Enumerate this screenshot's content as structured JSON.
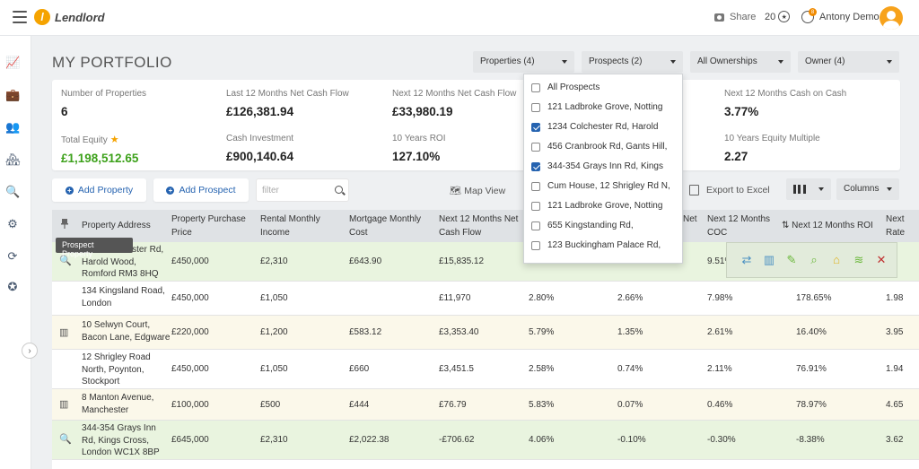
{
  "app": {
    "brand": "Lendlord",
    "share_label": "Share",
    "coins": "20",
    "notif_count": "8",
    "user_name": "Antony Demo"
  },
  "page": {
    "title": "MY PORTFOLIO"
  },
  "filters": {
    "properties": "Properties (4)",
    "prospects": "Prospects (2)",
    "ownerships": "All Ownerships",
    "owner": "Owner (4)"
  },
  "stats": {
    "num_properties_label": "Number of Properties",
    "num_properties": "6",
    "last12_label": "Last 12 Months Net Cash Flow",
    "last12": "£126,381.94",
    "next12_label": "Next 12 Months Net Cash Flow",
    "next12": "£33,980.19",
    "next12_coc_label": "Next 12 Months Cash on Cash",
    "next12_coc": "3.77%",
    "total_equity_label": "Total Equity",
    "total_equity": "£1,198,512.65",
    "cash_investment_label": "Cash Investment",
    "cash_investment": "£900,140.64",
    "roi10_label": "10 Years ROI",
    "roi10": "127.10%",
    "equity_multiple_label": "10 Years Equity Multiple",
    "equity_multiple": "2.27"
  },
  "toolbar": {
    "add_property": "Add Property",
    "add_prospect": "Add Prospect",
    "filter_placeholder": "filter",
    "map_view": "Map View",
    "export": "Export to Excel",
    "columns": "Columns"
  },
  "table": {
    "headers": {
      "address": "Property Address",
      "price": "Property Purchase Price",
      "rent": "Rental Monthly Income",
      "mortgage": "Mortgage Monthly Cost",
      "cashflow": "Next 12 Months Net Cash Flow",
      "col6": "",
      "col7": "Net",
      "coc": "Next 12 Months COC",
      "roi": "Next 12 Months ROI",
      "next": "Next Rate"
    },
    "tooltip": "Prospect Property",
    "rows": [
      {
        "type": "prospect",
        "address": "1234 Colchester Rd, Harold Wood, Romford RM3 8HQ",
        "addr1": "1234 Colchester Rd,",
        "addr2": "Harold Wood,",
        "addr3": "Romford RM3 8HQ",
        "price": "£450,000",
        "rent": "£2,310",
        "mortgage": "£643.90",
        "cashflow": "£15,835.12",
        "c6": "",
        "c7": "",
        "coc": "9.51%",
        "roi": "",
        "next": ""
      },
      {
        "type": "property",
        "addr1": "134 Kingsland Road,",
        "addr2": "London",
        "addr3": "",
        "price": "£450,000",
        "rent": "£1,050",
        "mortgage": "",
        "cashflow": "£11,970",
        "c6": "2.80%",
        "c7": "2.66%",
        "coc": "7.98%",
        "roi": "178.65%",
        "next": "1.98"
      },
      {
        "type": "building",
        "addr1": "10 Selwyn Court,",
        "addr2": "Bacon Lane, Edgware",
        "addr3": "",
        "price": "£220,000",
        "rent": "£1,200",
        "mortgage": "£583.12",
        "cashflow": "£3,353.40",
        "c6": "5.79%",
        "c7": "1.35%",
        "coc": "2.61%",
        "roi": "16.40%",
        "next": "3.95"
      },
      {
        "type": "property",
        "addr1": "12 Shrigley Road",
        "addr2": "North, Poynton,",
        "addr3": "Stockport",
        "price": "£450,000",
        "rent": "£1,050",
        "mortgage": "£660",
        "cashflow": "£3,451.5",
        "c6": "2.58%",
        "c7": "0.74%",
        "coc": "2.11%",
        "roi": "76.91%",
        "next": "1.94"
      },
      {
        "type": "building",
        "addr1": "8 Manton Avenue,",
        "addr2": "Manchester",
        "addr3": "",
        "price": "£100,000",
        "rent": "£500",
        "mortgage": "£444",
        "cashflow": "£76.79",
        "c6": "5.83%",
        "c7": "0.07%",
        "coc": "0.46%",
        "roi": "78.97%",
        "next": "4.65"
      },
      {
        "type": "prospect",
        "addr1": "344-354 Grays Inn",
        "addr2": "Rd, Kings Cross,",
        "addr3": "London WC1X 8BP",
        "price": "£645,000",
        "rent": "£2,310",
        "mortgage": "£2,022.38",
        "cashflow": "-£706.62",
        "c6": "4.06%",
        "c7": "-0.10%",
        "coc": "-0.30%",
        "roi": "-8.38%",
        "next": "3.62"
      }
    ]
  },
  "dropdown": {
    "items": [
      {
        "label": "All Prospects",
        "checked": false
      },
      {
        "label": "121 Ladbroke Grove, Notting",
        "checked": false
      },
      {
        "label": "1234 Colchester Rd, Harold",
        "checked": true
      },
      {
        "label": "456 Cranbrook Rd, Gants Hill,",
        "checked": false
      },
      {
        "label": "344-354 Grays Inn Rd, Kings",
        "checked": true
      },
      {
        "label": "Cum House, 12 Shrigley Rd N,",
        "checked": false
      },
      {
        "label": "121 Ladbroke Grove, Notting",
        "checked": false
      },
      {
        "label": "655 Kingstanding Rd,",
        "checked": false
      },
      {
        "label": "123 Buckingham Palace Rd,",
        "checked": false
      }
    ]
  },
  "colors": {
    "accent": "#2563b0",
    "brand": "#f5a300",
    "green_row": "#e9f4df",
    "yellow_row": "#fbf8ea",
    "positive": "#3da11b"
  }
}
